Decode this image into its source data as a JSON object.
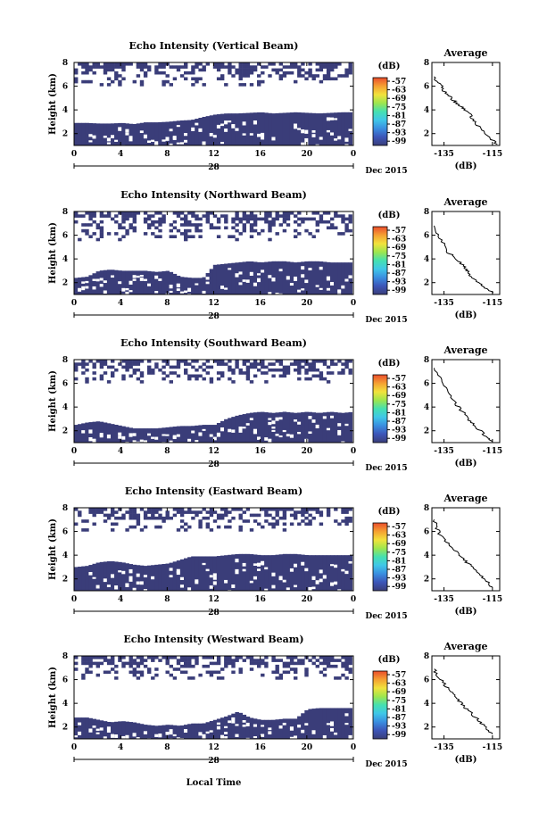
{
  "chart_data": [
    {
      "type": "heatmap",
      "title": "Echo Intensity (Vertical Beam)",
      "ylabel": "Height (km)",
      "yticks": [
        "2",
        "4",
        "6",
        "8"
      ],
      "ylim": [
        1,
        8
      ],
      "xticks": [
        "0",
        "4",
        "8",
        "12",
        "16",
        "20",
        "0"
      ],
      "xlim": [
        0,
        24
      ],
      "date_label": "28",
      "month_label": "Dec 2015",
      "colorbar": {
        "unit": "(dB)",
        "ticks": [
          "-57",
          "-63",
          "-69",
          "-75",
          "-81",
          "-87",
          "-93",
          "-99"
        ]
      },
      "dense_cover_top_km": [
        2.9,
        2.9,
        2.85,
        2.85,
        2.9,
        2.8,
        2.95,
        2.95,
        3.0,
        3.1,
        3.15,
        3.4,
        3.6,
        3.7,
        3.7,
        3.75,
        3.8,
        3.7,
        3.75,
        3.8,
        3.75,
        3.7,
        3.75,
        3.8,
        3.8
      ],
      "sparse_cover_km": [
        6.0,
        8.0
      ]
    },
    {
      "type": "heatmap",
      "title": "Echo Intensity (Northward Beam)",
      "ylabel": "Height (km)",
      "yticks": [
        "2",
        "4",
        "6",
        "8"
      ],
      "ylim": [
        1,
        8
      ],
      "xticks": [
        "0",
        "4",
        "8",
        "12",
        "16",
        "20",
        "0"
      ],
      "xlim": [
        0,
        24
      ],
      "date_label": "28",
      "month_label": "Dec 2015",
      "colorbar": {
        "unit": "(dB)",
        "ticks": [
          "-57",
          "-63",
          "-69",
          "-75",
          "-81",
          "-87",
          "-93",
          "-99"
        ]
      },
      "dense_cover_top_km": [
        2.4,
        2.5,
        3.0,
        3.1,
        3.0,
        3.0,
        3.0,
        2.9,
        3.0,
        2.5,
        2.4,
        2.4,
        3.5,
        3.6,
        3.7,
        3.8,
        3.7,
        3.8,
        3.8,
        3.7,
        3.8,
        3.8,
        3.7,
        3.7,
        3.7
      ],
      "sparse_cover_km": [
        5.5,
        8.0
      ]
    },
    {
      "type": "heatmap",
      "title": "Echo Intensity (Southward Beam)",
      "ylabel": "Height (km)",
      "yticks": [
        "2",
        "4",
        "6",
        "8"
      ],
      "ylim": [
        1,
        8
      ],
      "xticks": [
        "0",
        "4",
        "8",
        "12",
        "16",
        "20",
        "0"
      ],
      "xlim": [
        0,
        24
      ],
      "date_label": "28",
      "month_label": "Dec 2015",
      "colorbar": {
        "unit": "(dB)",
        "ticks": [
          "-57",
          "-63",
          "-69",
          "-75",
          "-81",
          "-87",
          "-93",
          "-99"
        ]
      },
      "dense_cover_top_km": [
        2.5,
        2.7,
        2.8,
        2.6,
        2.4,
        2.2,
        2.2,
        2.2,
        2.3,
        2.4,
        2.4,
        2.5,
        2.5,
        3.0,
        3.3,
        3.5,
        3.6,
        3.5,
        3.6,
        3.5,
        3.6,
        3.5,
        3.6,
        3.5,
        3.6
      ],
      "sparse_cover_km": [
        6.0,
        8.0
      ]
    },
    {
      "type": "heatmap",
      "title": "Echo Intensity (Eastward Beam)",
      "ylabel": "Height (km)",
      "yticks": [
        "2",
        "4",
        "6",
        "8"
      ],
      "ylim": [
        1,
        8
      ],
      "xticks": [
        "0",
        "4",
        "8",
        "12",
        "16",
        "20",
        "0"
      ],
      "xlim": [
        0,
        24
      ],
      "date_label": "28",
      "month_label": "Dec 2015",
      "colorbar": {
        "unit": "(dB)",
        "ticks": [
          "-57",
          "-63",
          "-69",
          "-75",
          "-81",
          "-87",
          "-93",
          "-99"
        ]
      },
      "dense_cover_top_km": [
        3.0,
        3.1,
        3.4,
        3.5,
        3.4,
        3.2,
        3.1,
        3.2,
        3.3,
        3.6,
        3.9,
        3.9,
        3.9,
        4.0,
        4.1,
        4.1,
        4.0,
        4.0,
        4.1,
        4.1,
        4.0,
        4.0,
        4.0,
        4.0,
        4.0
      ],
      "sparse_cover_km": [
        6.0,
        8.0
      ]
    },
    {
      "type": "heatmap",
      "title": "Echo Intensity (Westward Beam)",
      "ylabel": "Height (km)",
      "yticks": [
        "2",
        "4",
        "6",
        "8"
      ],
      "ylim": [
        1,
        8
      ],
      "xticks": [
        "0",
        "4",
        "8",
        "12",
        "16",
        "20",
        "0"
      ],
      "xlim": [
        0,
        24
      ],
      "date_label": "28",
      "month_label": "Dec 2015",
      "colorbar": {
        "unit": "(dB)",
        "ticks": [
          "-57",
          "-63",
          "-69",
          "-75",
          "-81",
          "-87",
          "-93",
          "-99"
        ]
      },
      "dense_cover_top_km": [
        2.8,
        2.8,
        2.6,
        2.4,
        2.5,
        2.4,
        2.2,
        2.1,
        2.2,
        2.1,
        2.3,
        2.3,
        2.6,
        2.9,
        3.3,
        2.8,
        2.6,
        2.6,
        2.7,
        2.7,
        3.5,
        3.6,
        3.6,
        3.6,
        3.6
      ],
      "sparse_cover_km": [
        6.0,
        8.0
      ]
    },
    {
      "type": "line",
      "title": "Average",
      "xlabel": "(dB)",
      "xticks": [
        "-135",
        "-115"
      ],
      "xlim": [
        -140,
        -112
      ],
      "yticks": [
        "2",
        "4",
        "6",
        "8"
      ],
      "ylim": [
        1,
        8
      ],
      "series": [
        {
          "x": [
            -139,
            -138,
            -136,
            -135,
            -133,
            -131,
            -130,
            -128,
            -126,
            -124,
            -123,
            -121,
            -119,
            -117,
            -115,
            -113
          ],
          "y": [
            6.8,
            6.4,
            6.0,
            5.6,
            5.2,
            4.8,
            4.6,
            4.3,
            4.0,
            3.5,
            3.1,
            2.7,
            2.3,
            1.9,
            1.5,
            1.1
          ]
        }
      ]
    },
    {
      "type": "line",
      "title": "Average",
      "xlabel": "(dB)",
      "xticks": [
        "-135",
        "-115"
      ],
      "xlim": [
        -140,
        -112
      ],
      "yticks": [
        "2",
        "4",
        "6",
        "8"
      ],
      "ylim": [
        1,
        8
      ],
      "series": [
        {
          "x": [
            -139,
            -138,
            -136,
            -134,
            -133,
            -131,
            -129,
            -127,
            -126,
            -125,
            -123,
            -121,
            -119,
            -117,
            -115
          ],
          "y": [
            6.8,
            6.2,
            5.6,
            5.0,
            4.5,
            4.2,
            3.8,
            3.4,
            3.1,
            2.8,
            2.4,
            2.0,
            1.7,
            1.4,
            1.1
          ]
        }
      ]
    },
    {
      "type": "line",
      "title": "Average",
      "xlabel": "(dB)",
      "xticks": [
        "-135",
        "-115"
      ],
      "xlim": [
        -140,
        -112
      ],
      "yticks": [
        "2",
        "4",
        "6",
        "8"
      ],
      "ylim": [
        1,
        8
      ],
      "series": [
        {
          "x": [
            -139,
            -137,
            -135,
            -133,
            -131,
            -129,
            -127,
            -125,
            -123,
            -121,
            -119,
            -117,
            -115
          ],
          "y": [
            7.3,
            6.5,
            5.8,
            5.1,
            4.5,
            4.0,
            3.5,
            3.0,
            2.6,
            2.2,
            1.8,
            1.4,
            1.1
          ]
        }
      ]
    },
    {
      "type": "line",
      "title": "Average",
      "xlabel": "(dB)",
      "xticks": [
        "-135",
        "-115"
      ],
      "xlim": [
        -140,
        -112
      ],
      "yticks": [
        "2",
        "4",
        "6",
        "8"
      ],
      "ylim": [
        1,
        8
      ],
      "series": [
        {
          "x": [
            -139,
            -138,
            -137,
            -135,
            -133,
            -131,
            -129,
            -127,
            -125,
            -123,
            -121,
            -119,
            -117,
            -115
          ],
          "y": [
            7.0,
            6.4,
            5.8,
            5.3,
            4.9,
            4.5,
            4.1,
            3.7,
            3.3,
            2.9,
            2.5,
            2.1,
            1.7,
            1.3
          ]
        }
      ]
    },
    {
      "type": "line",
      "title": "Average",
      "xlabel": "(dB)",
      "xticks": [
        "-135",
        "-115"
      ],
      "xlim": [
        -140,
        -112
      ],
      "yticks": [
        "2",
        "4",
        "6",
        "8"
      ],
      "ylim": [
        1,
        8
      ],
      "series": [
        {
          "x": [
            -139,
            -138,
            -136,
            -134,
            -132,
            -131,
            -129,
            -127,
            -125,
            -123,
            -121,
            -119,
            -117,
            -115
          ],
          "y": [
            6.9,
            6.4,
            5.9,
            5.4,
            5.0,
            4.6,
            4.2,
            3.8,
            3.4,
            3.0,
            2.6,
            2.2,
            1.8,
            1.4
          ]
        }
      ]
    }
  ],
  "x_axis_label": "Local Time",
  "colors": {
    "cover": "#3a3d79",
    "frame": "#000000",
    "background": "#ffffff"
  },
  "colorbar_gradient": [
    "#3a3d79",
    "#3c55b8",
    "#3a8ee0",
    "#3fc7e8",
    "#45e0b0",
    "#9ee64e",
    "#f2e23c",
    "#f5a032",
    "#ea4d2c"
  ]
}
